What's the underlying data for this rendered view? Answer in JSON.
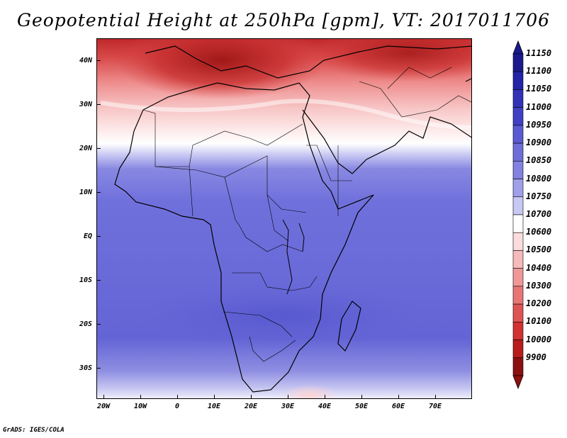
{
  "title": "Geopotential Height at 250hPa [gpm], VT: 2017011706",
  "footer": "GrADS: IGES/COLA",
  "lat_labels": [
    "40N",
    "30N",
    "20N",
    "10N",
    "EQ",
    "10S",
    "20S",
    "30S"
  ],
  "lon_labels": [
    "20W",
    "10W",
    "0",
    "10E",
    "20E",
    "30E",
    "40E",
    "50E",
    "60E",
    "70E"
  ],
  "colorbar": {
    "labels": [
      "11150",
      "11100",
      "11050",
      "11000",
      "10950",
      "10900",
      "10850",
      "10800",
      "10750",
      "10700",
      "10600",
      "10500",
      "10400",
      "10300",
      "10200",
      "10100",
      "10000",
      "9900"
    ],
    "colors": [
      "#1a1a8c",
      "#2424a8",
      "#3232b8",
      "#4040c4",
      "#5a5ad2",
      "#6e6ed8",
      "#8282e0",
      "#a0a0ea",
      "#c8c8f4",
      "#ffffff",
      "#fbdcdc",
      "#f6baba",
      "#f09898",
      "#e87676",
      "#de5454",
      "#d23232",
      "#b81c1c",
      "#8c1010"
    ]
  }
}
